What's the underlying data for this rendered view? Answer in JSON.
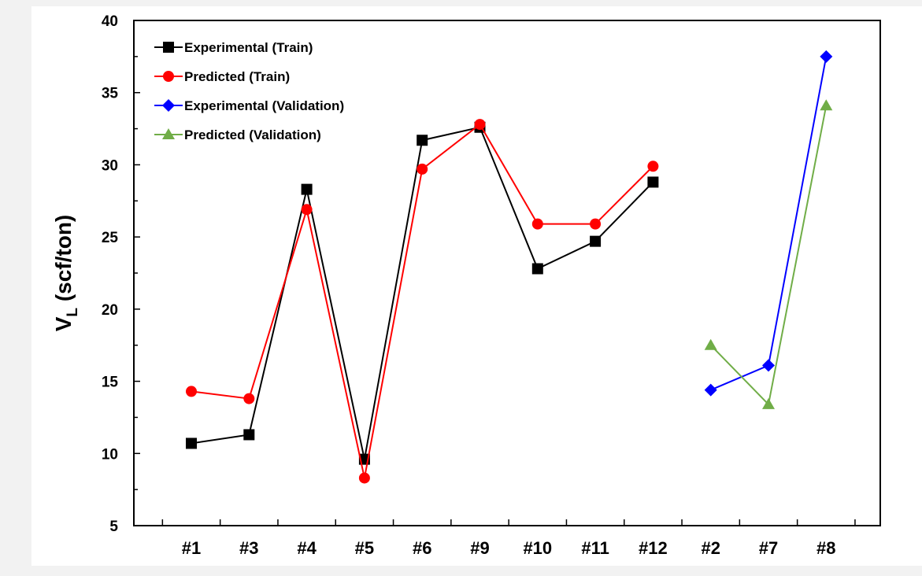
{
  "chart_data": {
    "type": "line",
    "categories": [
      "#1",
      "#3",
      "#4",
      "#5",
      "#6",
      "#9",
      "#10",
      "#11",
      "#12",
      "#2",
      "#7",
      "#8"
    ],
    "ylabel_main": "V",
    "ylabel_sub": "L",
    "ylabel_unit": " (scf/ton)",
    "ylim": [
      5,
      40
    ],
    "yticks": [
      5,
      10,
      15,
      20,
      25,
      30,
      35,
      40
    ],
    "grid": false,
    "legend_position": "top-left",
    "series": [
      {
        "name": "Experimental (Train)",
        "color": "#000000",
        "marker": "square",
        "x": [
          "#1",
          "#3",
          "#4",
          "#5",
          "#6",
          "#9",
          "#10",
          "#11",
          "#12"
        ],
        "values": [
          10.7,
          11.3,
          28.3,
          9.6,
          31.7,
          32.6,
          22.8,
          24.7,
          28.8
        ]
      },
      {
        "name": "Predicted (Train)",
        "color": "#ff0000",
        "marker": "circle",
        "x": [
          "#1",
          "#3",
          "#4",
          "#5",
          "#6",
          "#9",
          "#10",
          "#11",
          "#12"
        ],
        "values": [
          14.3,
          13.8,
          26.9,
          8.3,
          29.7,
          32.8,
          25.9,
          25.9,
          29.9
        ]
      },
      {
        "name": "Experimental (Validation)",
        "color": "#0000ff",
        "marker": "diamond",
        "x": [
          "#2",
          "#7",
          "#8"
        ],
        "values": [
          14.4,
          16.1,
          37.5
        ]
      },
      {
        "name": "Predicted (Validation)",
        "color": "#70ad47",
        "marker": "triangle",
        "x": [
          "#2",
          "#7",
          "#8"
        ],
        "values": [
          17.5,
          13.4,
          34.1
        ]
      }
    ]
  }
}
